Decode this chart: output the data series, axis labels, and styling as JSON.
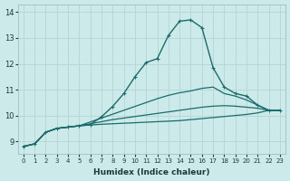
{
  "background_color": "#cdeaea",
  "grid_color": "#b8d8d8",
  "line_color": "#1a6b6b",
  "xlabel": "Humidex (Indice chaleur)",
  "xlim": [
    -0.5,
    23.5
  ],
  "ylim": [
    8.5,
    14.3
  ],
  "yticks": [
    9,
    10,
    11,
    12,
    13,
    14
  ],
  "xticks": [
    0,
    1,
    2,
    3,
    4,
    5,
    6,
    7,
    8,
    9,
    10,
    11,
    12,
    13,
    14,
    15,
    16,
    17,
    18,
    19,
    20,
    21,
    22,
    23
  ],
  "series_marked": [
    [
      8.8,
      8.9,
      9.35,
      9.5,
      9.55,
      9.6,
      9.65,
      9.95,
      10.35,
      10.85,
      11.5,
      12.05,
      12.2,
      13.1,
      13.65,
      13.7,
      13.4,
      11.85,
      11.1,
      10.85,
      10.75,
      10.4,
      10.2,
      10.2
    ]
  ],
  "series_plain": [
    [
      8.8,
      8.9,
      9.35,
      9.5,
      9.55,
      9.6,
      9.75,
      9.9,
      10.05,
      10.2,
      10.35,
      10.5,
      10.65,
      10.78,
      10.88,
      10.95,
      11.05,
      11.1,
      10.85,
      10.75,
      10.6,
      10.4,
      10.2,
      10.2
    ],
    [
      8.8,
      8.9,
      9.35,
      9.5,
      9.55,
      9.6,
      9.68,
      9.76,
      9.84,
      9.9,
      9.96,
      10.02,
      10.08,
      10.14,
      10.2,
      10.26,
      10.32,
      10.36,
      10.38,
      10.36,
      10.32,
      10.28,
      10.2,
      10.2
    ],
    [
      8.8,
      8.9,
      9.35,
      9.5,
      9.55,
      9.6,
      9.63,
      9.66,
      9.68,
      9.7,
      9.72,
      9.74,
      9.76,
      9.78,
      9.8,
      9.84,
      9.88,
      9.92,
      9.96,
      10.0,
      10.04,
      10.1,
      10.2,
      10.2
    ]
  ]
}
